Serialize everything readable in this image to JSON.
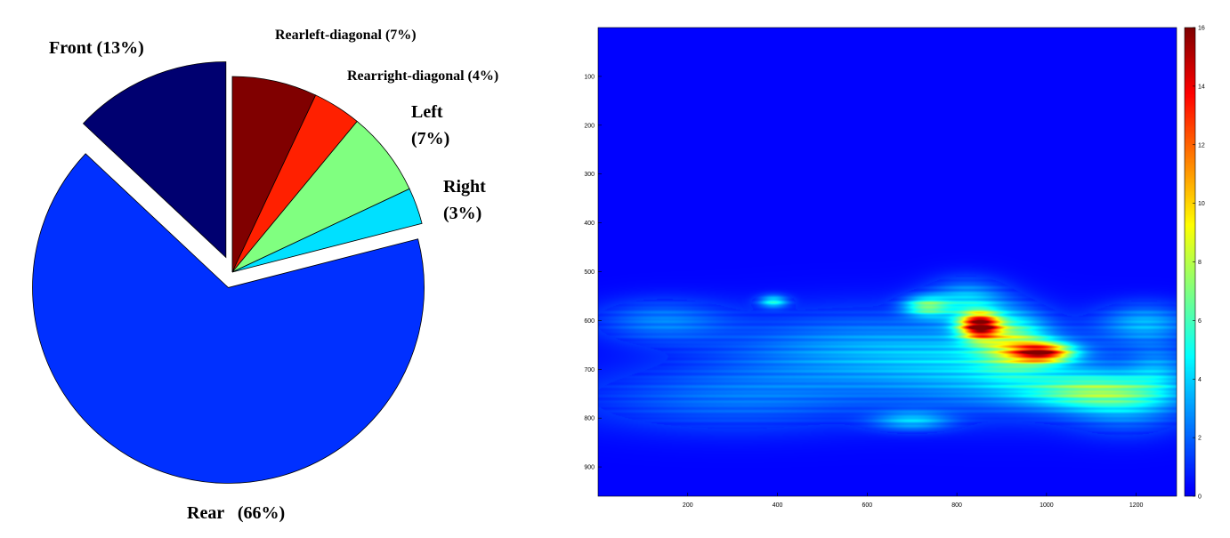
{
  "chart_data": [
    {
      "type": "pie",
      "slices": [
        {
          "label": "Rearleft-diagonal (7%)",
          "value": 7,
          "color": "#800000",
          "exploded": false
        },
        {
          "label": "Rearright-diagonal (4%)",
          "value": 4,
          "color": "#ff2000",
          "exploded": false
        },
        {
          "label": "Left (7%)",
          "value": 7,
          "color": "#80ff80",
          "exploded": false
        },
        {
          "label": "Right (3%)",
          "value": 3,
          "color": "#00e0ff",
          "exploded": false
        },
        {
          "label": "Rear (66%)",
          "value": 66,
          "color": "#0030ff",
          "exploded": true
        },
        {
          "label": "Front (13%)",
          "value": 13,
          "color": "#000070",
          "exploded": true
        }
      ],
      "label_lines": {
        "left": [
          "Left",
          "(7%)"
        ],
        "right": [
          "Right",
          "(3%)"
        ],
        "rear": "Rear   (66%)",
        "front": "Front  (13%)"
      }
    },
    {
      "type": "heatmap",
      "colormap": "jet",
      "xlim": [
        0,
        1290
      ],
      "ylim": [
        0,
        960
      ],
      "y_reversed": true,
      "xticks": [
        "200",
        "400",
        "600",
        "800",
        "1000",
        "1200"
      ],
      "yticks": [
        "100",
        "200",
        "300",
        "400",
        "500",
        "600",
        "700",
        "800",
        "900"
      ],
      "colorbar": {
        "range": [
          0,
          16
        ],
        "ticks": [
          "0",
          "2",
          "4",
          "6",
          "8",
          "10",
          "12",
          "14",
          "16"
        ]
      },
      "background_value": 0.3,
      "hotspots": [
        {
          "x": 850,
          "y": 610,
          "value": 16,
          "sx": 30,
          "sy": 18
        },
        {
          "x": 990,
          "y": 665,
          "value": 13.5,
          "sx": 45,
          "sy": 14
        },
        {
          "x": 920,
          "y": 640,
          "value": 6,
          "sx": 55,
          "sy": 40
        },
        {
          "x": 1100,
          "y": 745,
          "value": 5.5,
          "sx": 110,
          "sy": 25
        },
        {
          "x": 730,
          "y": 570,
          "value": 6,
          "sx": 35,
          "sy": 14
        },
        {
          "x": 1220,
          "y": 605,
          "value": 3.5,
          "sx": 70,
          "sy": 28
        },
        {
          "x": 390,
          "y": 560,
          "value": 5,
          "sx": 22,
          "sy": 9
        },
        {
          "x": 570,
          "y": 660,
          "value": 3,
          "sx": 220,
          "sy": 55
        },
        {
          "x": 900,
          "y": 700,
          "value": 3.5,
          "sx": 180,
          "sy": 60
        },
        {
          "x": 1180,
          "y": 770,
          "value": 3,
          "sx": 90,
          "sy": 40
        },
        {
          "x": 700,
          "y": 805,
          "value": 3.5,
          "sx": 60,
          "sy": 14
        },
        {
          "x": 140,
          "y": 600,
          "value": 2.5,
          "sx": 100,
          "sy": 30
        },
        {
          "x": 300,
          "y": 760,
          "value": 2.2,
          "sx": 230,
          "sy": 45
        },
        {
          "x": 820,
          "y": 560,
          "value": 4,
          "sx": 60,
          "sy": 30
        },
        {
          "x": 1250,
          "y": 700,
          "value": 2.5,
          "sx": 50,
          "sy": 35
        }
      ]
    }
  ]
}
